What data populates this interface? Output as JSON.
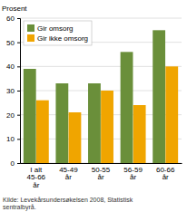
{
  "chart_data": {
    "type": "bar",
    "y_label": "Prosent",
    "annotations": [
      "Kilde: Levekårsundersøkelsen 2008, Statistisk\nsentralbyrå."
    ],
    "categories": [
      "I alt\n45-66\når",
      "45-49\når",
      "50-55\når",
      "56-59\når",
      "60-66\når"
    ],
    "series": [
      {
        "name": "Gir omsorg",
        "color": "#6a8f3a",
        "values": [
          39,
          33,
          33,
          46,
          55
        ]
      },
      {
        "name": "Gir ikke omsorg",
        "color": "#f0a500",
        "values": [
          26,
          21,
          30,
          24,
          40
        ]
      }
    ],
    "ylim": [
      0,
      60
    ],
    "yticks": [
      0,
      10,
      20,
      30,
      40,
      50,
      60
    ],
    "grid": true,
    "legend": "upper left"
  }
}
